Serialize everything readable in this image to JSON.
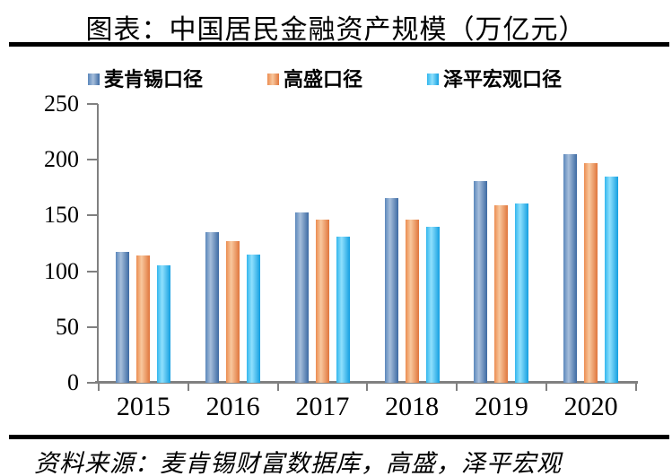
{
  "figure": {
    "title": "图表：中国居民金融资产规模（万亿元）",
    "source_note": "资料来源：麦肯锡财富数据库，高盛，泽平宏观"
  },
  "colors": {
    "axis": "#808080",
    "divider": "#000000",
    "background": "#ffffff",
    "text": "#000000"
  },
  "chart_data": {
    "type": "bar",
    "title": "图表：中国居民金融资产规模（万亿元）",
    "unit": "万亿元",
    "categories": [
      "2015",
      "2016",
      "2017",
      "2018",
      "2019",
      "2020"
    ],
    "series": [
      {
        "name": "麦肯锡口径",
        "color": "#5b87bb",
        "color_light": "#a6bedb",
        "color_dark": "#3d6aa3",
        "values": [
          117,
          135,
          153,
          166,
          181,
          205
        ]
      },
      {
        "name": "高盛口径",
        "color": "#ec8d51",
        "color_light": "#f8c89e",
        "color_dark": "#e0763c",
        "values": [
          114,
          127,
          146,
          146,
          159,
          197
        ]
      },
      {
        "name": "泽平宏观口径",
        "color": "#33b7ee",
        "color_light": "#8fe0fd",
        "color_dark": "#149fe0",
        "values": [
          105,
          115,
          131,
          140,
          161,
          185
        ]
      }
    ],
    "xlabel": "",
    "ylabel": "",
    "ylim": [
      0,
      250
    ],
    "yticks": [
      250,
      200,
      150,
      100,
      50,
      0
    ],
    "grid": false,
    "legend_position": "top"
  }
}
